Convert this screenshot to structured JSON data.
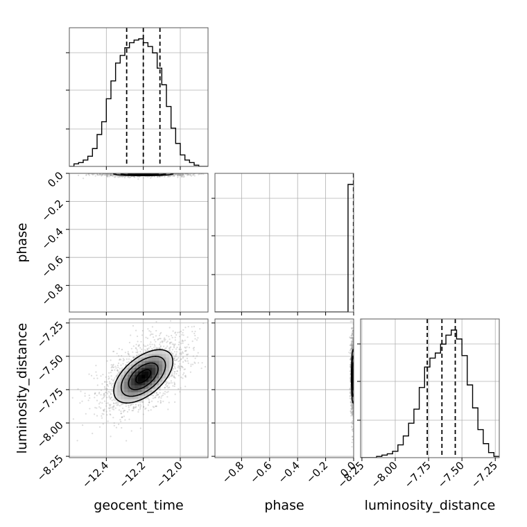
{
  "chart_data": {
    "type": "corner",
    "parameters": [
      "geocent_time",
      "phase",
      "luminosity_distance"
    ],
    "axis_labels": {
      "x": [
        "geocent_time",
        "phase",
        "luminosity_distance"
      ],
      "y": [
        "phase",
        "luminosity_distance"
      ]
    },
    "ranges": {
      "geocent_time": [
        -12.6,
        -11.85
      ],
      "phase": [
        -0.99,
        0.0
      ],
      "luminosity_distance": [
        -8.26,
        -7.22
      ]
    },
    "ticks": {
      "geocent_time": [
        -12.4,
        -12.2,
        -12.0
      ],
      "phase": [
        -0.8,
        -0.6,
        -0.4,
        -0.2,
        0.0
      ],
      "luminosity_distance": [
        -8.25,
        -8.0,
        -7.75,
        -7.5,
        -7.25
      ]
    },
    "tick_labels": {
      "geocent_time": [
        "−12.4",
        "−12.2",
        "−12.0"
      ],
      "phase": [
        "−0.8",
        "−0.6",
        "−0.4",
        "−0.2",
        "0.0"
      ],
      "luminosity_distance": [
        "−8.25",
        "−8.00",
        "−7.75",
        "−7.50",
        "−7.25"
      ]
    },
    "quantiles": {
      "geocent_time": [
        -12.29,
        -12.2,
        -12.11
      ],
      "phase": [
        -0.001,
        -0.0005,
        0.0
      ],
      "luminosity_distance": [
        -7.76,
        -7.65,
        -7.55
      ]
    },
    "histograms": {
      "geocent_time": {
        "edges": [
          -12.6,
          -12.575,
          -12.55,
          -12.525,
          -12.5,
          -12.475,
          -12.45,
          -12.425,
          -12.4,
          -12.375,
          -12.35,
          -12.325,
          -12.3,
          -12.275,
          -12.25,
          -12.225,
          -12.2,
          -12.175,
          -12.15,
          -12.125,
          -12.1,
          -12.075,
          -12.05,
          -12.025,
          -12.0,
          -11.975,
          -11.95,
          -11.925,
          -11.9,
          -11.875,
          -11.85
        ],
        "counts": [
          0,
          2,
          3,
          5,
          8,
          14,
          25,
          35,
          53,
          67,
          81,
          87,
          93,
          97,
          99,
          100,
          97,
          94,
          89,
          77,
          64,
          47,
          30,
          18,
          9,
          5,
          3,
          1,
          0,
          0
        ]
      },
      "phase": {
        "edges": [
          -0.99,
          -0.95,
          -0.9,
          -0.85,
          -0.8,
          -0.75,
          -0.7,
          -0.65,
          -0.6,
          -0.55,
          -0.5,
          -0.45,
          -0.4,
          -0.35,
          -0.3,
          -0.25,
          -0.2,
          -0.15,
          -0.1,
          -0.05,
          -0.04,
          0.0
        ],
        "counts": [
          0,
          0,
          0,
          0,
          0,
          0,
          0,
          0,
          0,
          0,
          0,
          0,
          0,
          0,
          0,
          0,
          0,
          0,
          0,
          0,
          100
        ]
      },
      "luminosity_distance": {
        "edges": [
          -8.26,
          -8.22,
          -8.18,
          -8.14,
          -8.1,
          -8.06,
          -8.02,
          -7.98,
          -7.94,
          -7.9,
          -7.86,
          -7.82,
          -7.78,
          -7.74,
          -7.7,
          -7.66,
          -7.62,
          -7.58,
          -7.54,
          -7.5,
          -7.46,
          -7.42,
          -7.38,
          -7.34,
          -7.3,
          -7.26,
          -7.22
        ],
        "counts": [
          0,
          0,
          0,
          1,
          2,
          3,
          5,
          10,
          17,
          27,
          38,
          55,
          71,
          78,
          82,
          89,
          96,
          100,
          93,
          80,
          57,
          39,
          22,
          11,
          4,
          1
        ]
      }
    },
    "density_2d": {
      "geocent_time_vs_phase": {
        "mean": [
          -12.2,
          -0.004
        ],
        "sd": [
          0.08,
          0.006
        ]
      },
      "geocent_time_vs_luminosity_distance": {
        "mean": [
          -12.2,
          -7.65
        ],
        "sd": [
          0.08,
          0.1
        ],
        "corr": 0.55
      },
      "phase_vs_luminosity_distance": {
        "mean": [
          -0.004,
          -7.65
        ],
        "sd": [
          0.006,
          0.1
        ]
      }
    },
    "grid": true,
    "quantile_line_style": "dashed"
  }
}
